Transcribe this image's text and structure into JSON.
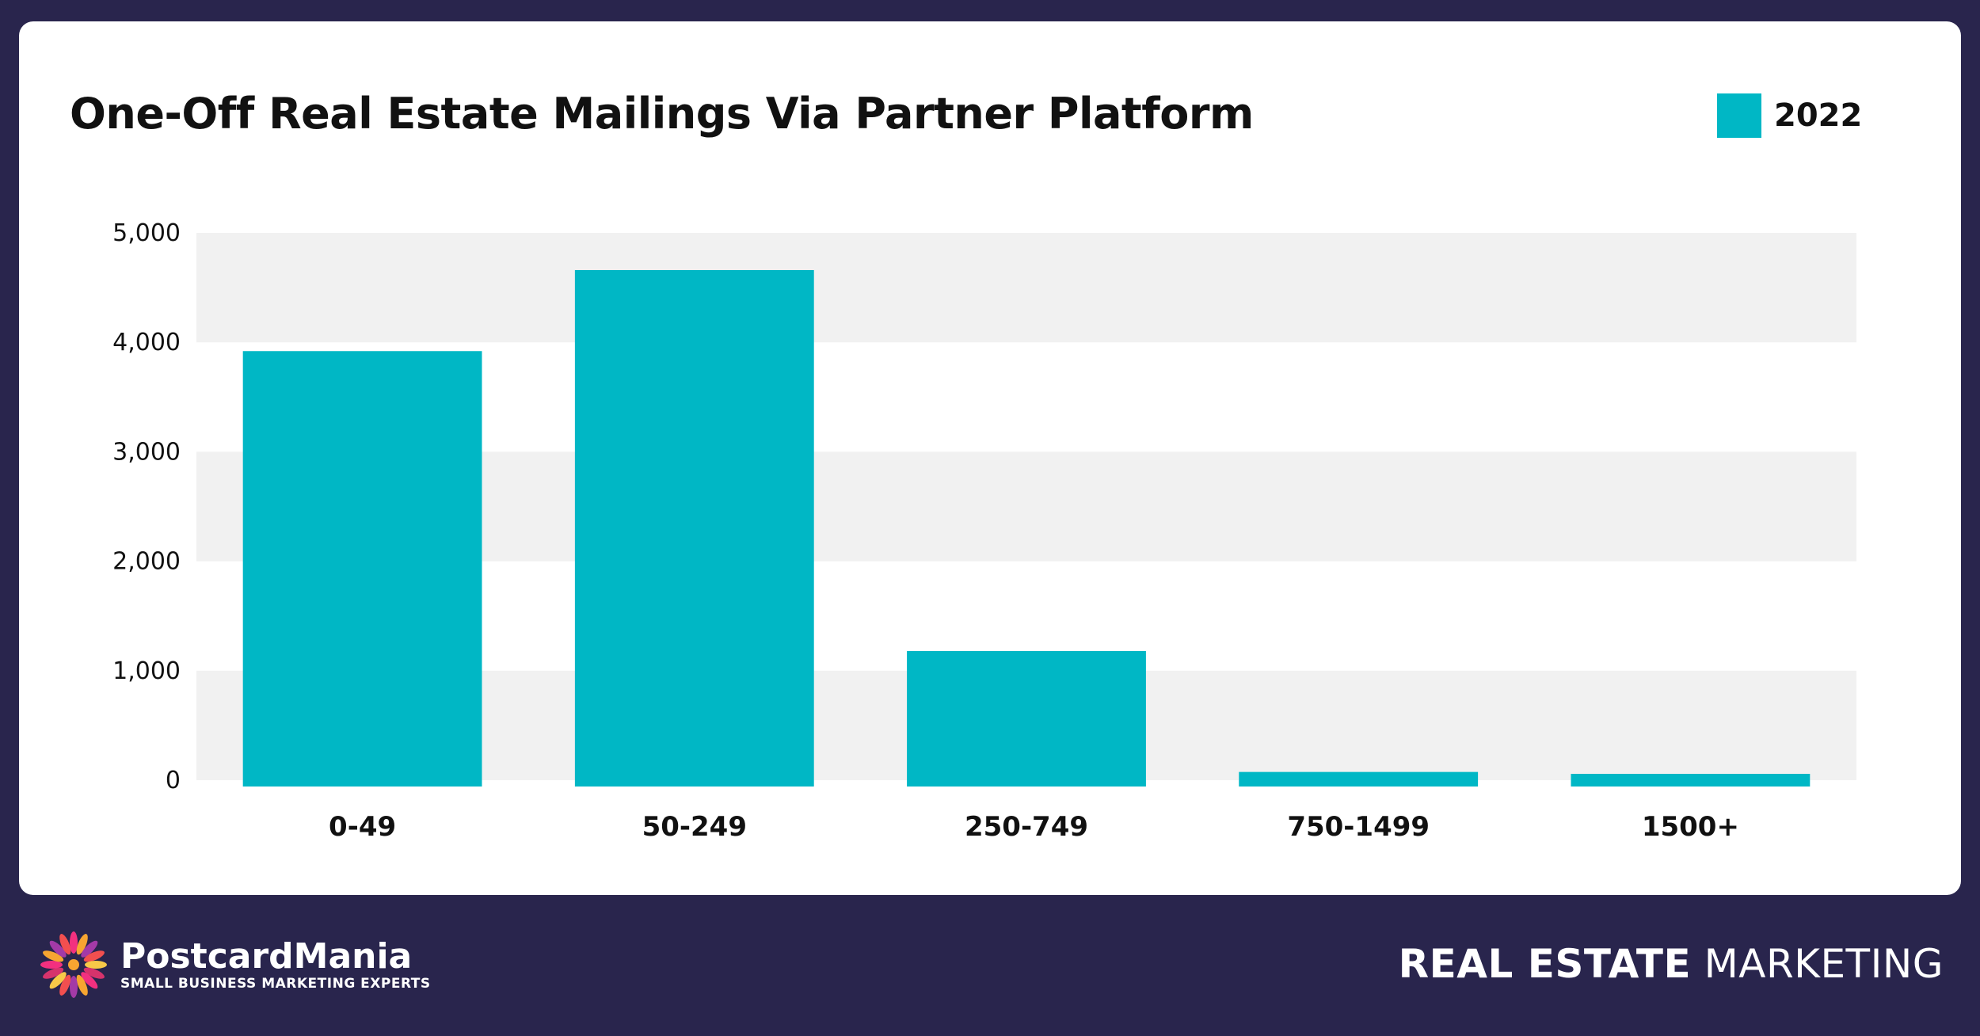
{
  "chart_data": {
    "type": "bar",
    "title": "One-Off Real Estate Mailings Via Partner Platform",
    "categories": [
      "0-49",
      "50-249",
      "250-749",
      "750-1499",
      "1500+"
    ],
    "series": [
      {
        "name": "2022",
        "values": [
          3920,
          4660,
          1180,
          75,
          -25
        ]
      }
    ],
    "y_ticks": [
      "0",
      "1,000",
      "2,000",
      "3,000",
      "4,000",
      "5,000"
    ],
    "ylim": [
      0,
      5000
    ],
    "grid": "alternating horizontal bands",
    "legend_position": "top-right",
    "bar_color": "#00b7c5",
    "band_color": "#f1f1f1"
  },
  "footer": {
    "brand_name": "PostcardMania",
    "brand_tagline": "SMALL BUSINESS MARKETING EXPERTS",
    "right_strong": "REAL ESTATE",
    "right_light": "MARKETING"
  },
  "colors": {
    "background": "#29254d",
    "card": "#ffffff",
    "accent": "#00b7c5"
  }
}
